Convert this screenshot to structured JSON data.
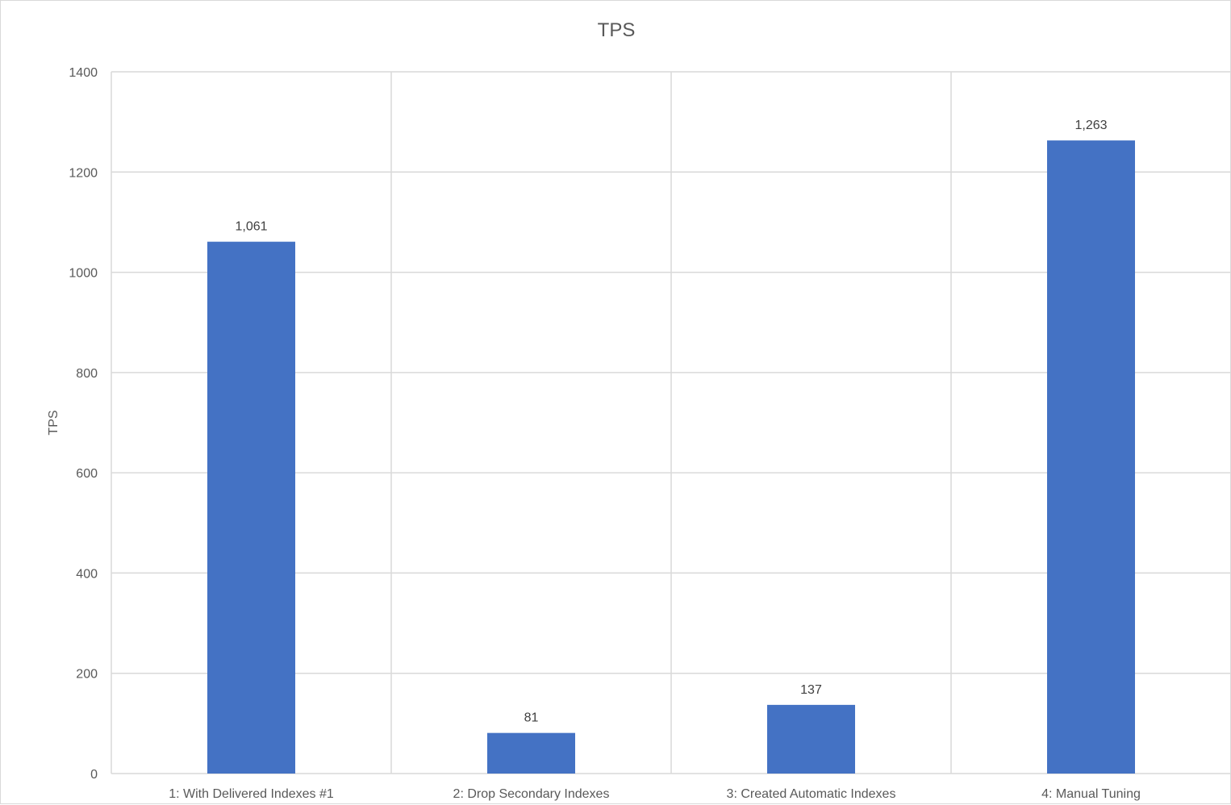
{
  "chart_data": {
    "type": "bar",
    "title": "TPS",
    "xlabel": "",
    "ylabel": "TPS",
    "categories": [
      "1: With Delivered Indexes #1",
      "2: Drop Secondary Indexes",
      "3: Created Automatic Indexes",
      "4: Manual Tuning"
    ],
    "values": [
      1061,
      81,
      137,
      1263
    ],
    "data_labels": [
      "1,061",
      "81",
      "137",
      "1,263"
    ],
    "ylim": [
      0,
      1400
    ],
    "yticks": [
      0,
      200,
      400,
      600,
      800,
      1000,
      1200,
      1400
    ],
    "grid": true,
    "legend": "none",
    "colors": {
      "bar": "#4472C4",
      "grid": "#D9D9D9",
      "text": "#595959"
    }
  }
}
